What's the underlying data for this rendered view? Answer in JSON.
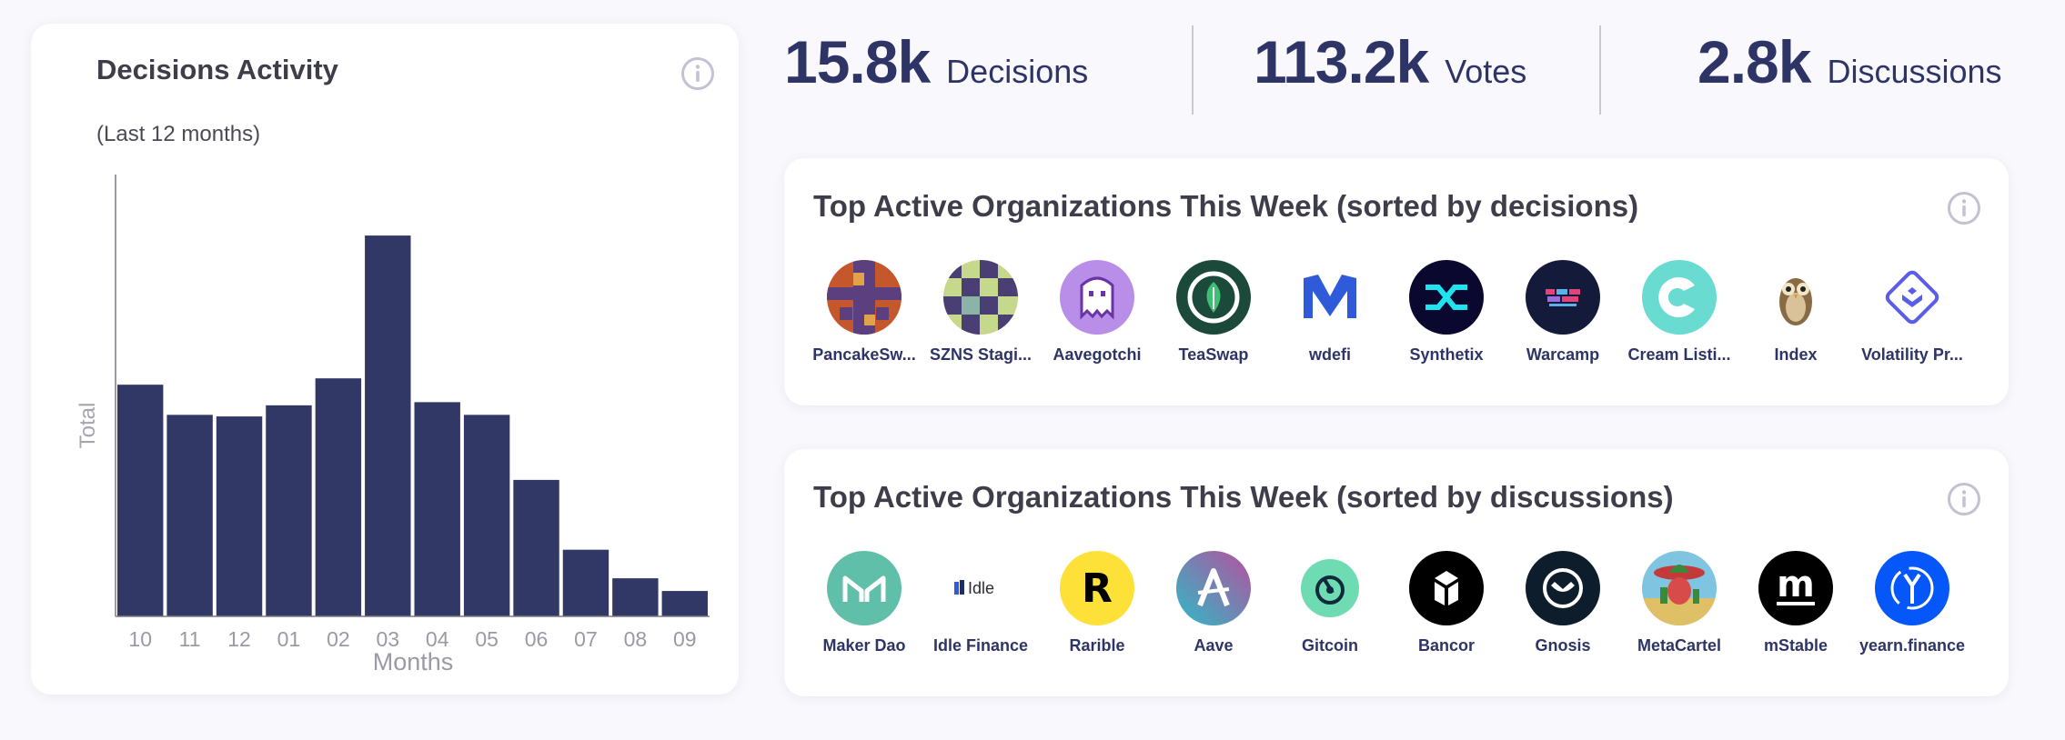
{
  "chart_card": {
    "title": "Decisions Activity",
    "subtitle": "(Last 12 months)"
  },
  "chart_data": {
    "type": "bar",
    "categories": [
      "10",
      "11",
      "12",
      "01",
      "02",
      "03",
      "04",
      "05",
      "06",
      "07",
      "08",
      "09"
    ],
    "values": [
      1460,
      1270,
      1260,
      1330,
      1500,
      2400,
      1350,
      1270,
      860,
      420,
      240,
      160
    ],
    "xlabel": "Months",
    "ylabel": "Total",
    "ylim": [
      0,
      2750
    ],
    "color": "#313866",
    "grid": false
  },
  "stats": [
    {
      "value": "15.8k",
      "label": "Decisions"
    },
    {
      "value": "113.2k",
      "label": "Votes"
    },
    {
      "value": "2.8k",
      "label": "Discussions"
    }
  ],
  "top_decisions": {
    "title": "Top Active Organizations This Week (sorted by decisions)",
    "orgs": [
      {
        "name": "PancakeSw...",
        "icon": "pancakeswap-logo"
      },
      {
        "name": "SZNS Stagi...",
        "icon": "szns-logo"
      },
      {
        "name": "Aavegotchi",
        "icon": "aavegotchi-logo"
      },
      {
        "name": "TeaSwap",
        "icon": "teaswap-logo"
      },
      {
        "name": "wdefi",
        "icon": "wdefi-logo"
      },
      {
        "name": "Synthetix",
        "icon": "synthetix-logo"
      },
      {
        "name": "Warcamp",
        "icon": "warcamp-logo"
      },
      {
        "name": "Cream Listi...",
        "icon": "cream-logo"
      },
      {
        "name": "Index",
        "icon": "index-owl-logo"
      },
      {
        "name": "Volatility Pr...",
        "icon": "volatility-logo"
      }
    ]
  },
  "top_discussions": {
    "title": "Top Active Organizations This Week (sorted by discussions)",
    "orgs": [
      {
        "name": "Maker Dao",
        "icon": "maker-logo"
      },
      {
        "name": "Idle Finance",
        "icon": "idle-logo",
        "logo_text": "Idle"
      },
      {
        "name": "Rarible",
        "icon": "rarible-logo",
        "logo_text": "R"
      },
      {
        "name": "Aave",
        "icon": "aave-logo"
      },
      {
        "name": "Gitcoin",
        "icon": "gitcoin-logo"
      },
      {
        "name": "Bancor",
        "icon": "bancor-logo"
      },
      {
        "name": "Gnosis",
        "icon": "gnosis-logo"
      },
      {
        "name": "MetaCartel",
        "icon": "metacartel-logo"
      },
      {
        "name": "mStable",
        "icon": "mstable-logo",
        "logo_text": "m"
      },
      {
        "name": "yearn.finance",
        "icon": "yearn-logo"
      }
    ]
  }
}
